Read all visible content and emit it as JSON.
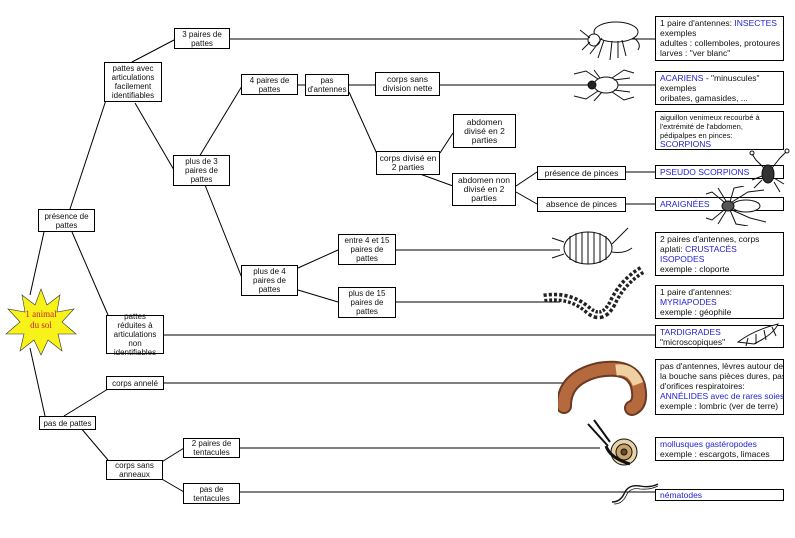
{
  "root": {
    "line1": "1 animal",
    "line2": "du sol"
  },
  "nodes": {
    "presence_pattes": "présence de pattes",
    "pas_de_pattes": "pas de pattes",
    "pattes_articulations": "pattes avec articulations facilement identifiables",
    "pattes_reduites": "pattes réduites à articulations non identifiables",
    "trois_paires": "3 paires de pattes",
    "plus_de_3": "plus de 3 paires de pattes",
    "quatre_paires": "4 paires de pattes",
    "plus_de_4": "plus de 4 paires de pattes",
    "pas_antennes": "pas d'antennes",
    "corps_sans_division": "corps sans division nette",
    "corps_divise": "corps divisé en 2 parties",
    "abdomen_divise": "abdomen divisé en 2 parties",
    "abdomen_non_divise": "abdomen non divisé en 2 parties",
    "presence_pinces": "présence de pinces",
    "absence_pinces": "absence de pinces",
    "entre_4_15": "entre 4 et 15 paires de pattes",
    "plus_de_15": "plus de 15 paires de pattes",
    "corps_anneles": "corps annelé",
    "corps_sans_anneaux": "corps sans anneaux",
    "deux_paires_tentacules": "2 paires de tentacules",
    "pas_tentacules": "pas de tentacules"
  },
  "results": {
    "insectes": {
      "line1": "1 paire d'antennes:",
      "name": "INSECTES",
      "line2": "exemples",
      "line3": "adultes : collemboles, protoures",
      "line4": "larves : \"ver blanc\""
    },
    "acariens": {
      "name": "ACARIENS",
      "tag": " - \"minuscules\"",
      "line2": "exemples",
      "line3": "oribates, gamasides, ..."
    },
    "scorpions": {
      "line1": "aiguillon venimeux recourbé à",
      "line2": "l'extrémité de l'abdomen,",
      "line3": "pédipalpes en pinces:",
      "name": "SCORPIONS"
    },
    "pseudo_scorpions": {
      "name": "PSEUDO SCORPIONS"
    },
    "araignees": {
      "name": "ARAIGNÉES"
    },
    "crustaces": {
      "line1": "2 paires d'antennes, corps",
      "line2": "aplati:",
      "name1": "CRUSTACÉS",
      "name2": "ISOPODES",
      "line3": "exemple : cloporte"
    },
    "myriapodes": {
      "line1": "1 paire d'antennes:",
      "name": "MYRIAPODES",
      "line2": "exemple : géophile"
    },
    "tardigrades": {
      "name": "TARDIGRADES",
      "line2": "\"microscopiques\""
    },
    "annelides": {
      "line1": "pas d'antennes, lèvres autour de",
      "line2": "la bouche sans pièces dures, pas",
      "line3": "d'orifices respiratoires:",
      "name": "ANNÉLIDES avec de rares soies",
      "line4": "exemple : lombric (ver de terre)"
    },
    "mollusques": {
      "name": "mollusques gastéropodes",
      "line2": "exemple : escargots, limaces"
    },
    "nematodes": {
      "name": "nématodes"
    }
  },
  "colors": {
    "star": "#f7f21a",
    "root_text": "#c22222",
    "taxon": "#2323d6"
  }
}
